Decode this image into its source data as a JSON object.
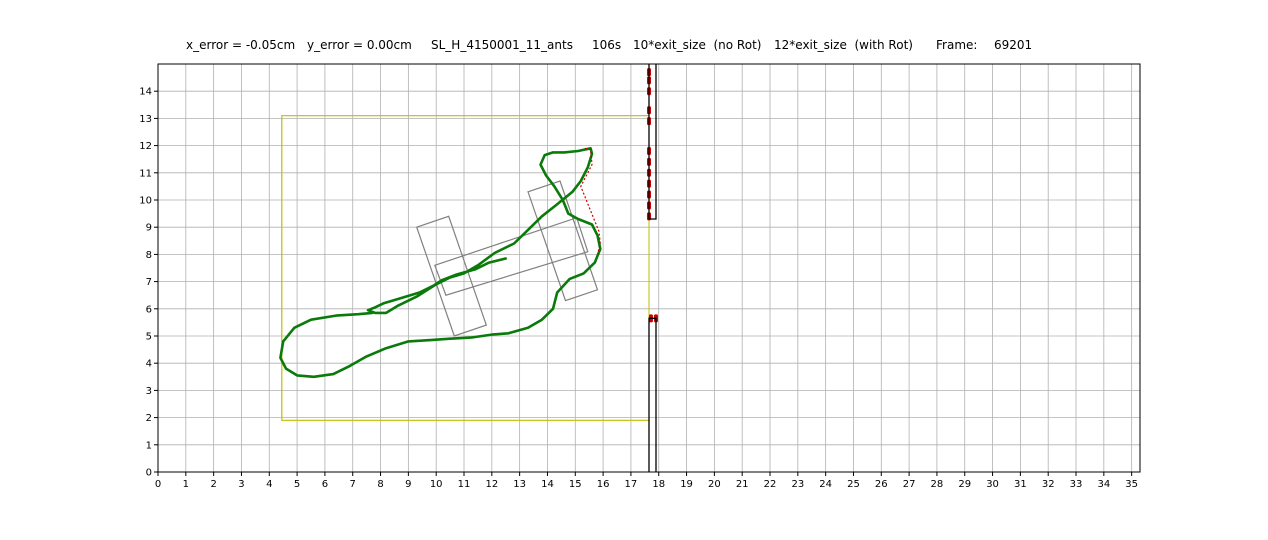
{
  "title": {
    "x_error": "x_error = -0.05cm",
    "y_error": "y_error = 0.00cm",
    "experiment": "SL_H_4150001_11_ants",
    "time": "106s",
    "exit_no_rot": "10*exit_size  (no Rot)",
    "exit_with_rot": "12*exit_size  (with Rot)",
    "frame_label": "Frame:",
    "frame_value": "69201"
  },
  "chart_data": {
    "type": "line",
    "title": "",
    "xlabel": "",
    "ylabel": "",
    "xlim": [
      0,
      35.3
    ],
    "ylim": [
      0,
      15
    ],
    "xticks": [
      0,
      1,
      2,
      3,
      4,
      5,
      6,
      7,
      8,
      9,
      10,
      11,
      12,
      13,
      14,
      15,
      16,
      17,
      18,
      19,
      20,
      21,
      22,
      23,
      24,
      25,
      26,
      27,
      28,
      29,
      30,
      31,
      32,
      33,
      34,
      35
    ],
    "yticks": [
      0,
      1,
      2,
      3,
      4,
      5,
      6,
      7,
      8,
      9,
      10,
      11,
      12,
      13,
      14
    ],
    "grid": true,
    "colors": {
      "trajectory": "#0a7a0a",
      "trajectory_rot": "#cc0000",
      "arena": "#bfbf00",
      "walls": "#000000",
      "shape": "#808080",
      "grid": "#b0b0b0"
    },
    "arena_rect": {
      "x0": 4.45,
      "y0": 1.9,
      "x1": 17.65,
      "y1": 13.1
    },
    "exit_line_x": 17.65,
    "walls": [
      {
        "points": [
          [
            17.65,
            15
          ],
          [
            17.65,
            9.3
          ],
          [
            17.9,
            9.3
          ],
          [
            17.9,
            15
          ]
        ]
      },
      {
        "points": [
          [
            17.65,
            0
          ],
          [
            17.65,
            5.65
          ],
          [
            17.9,
            5.65
          ],
          [
            17.9,
            0
          ]
        ]
      }
    ],
    "shape_polygons": [
      {
        "points": [
          [
            9.3,
            9.0
          ],
          [
            10.45,
            9.4
          ],
          [
            11.8,
            5.4
          ],
          [
            10.65,
            5.0
          ]
        ]
      },
      {
        "points": [
          [
            13.3,
            10.3
          ],
          [
            14.45,
            10.7
          ],
          [
            15.8,
            6.7
          ],
          [
            14.65,
            6.3
          ]
        ]
      },
      {
        "points": [
          [
            9.95,
            7.6
          ],
          [
            15.05,
            9.35
          ],
          [
            15.45,
            8.1
          ],
          [
            10.35,
            6.5
          ]
        ]
      }
    ],
    "trajectory": [
      [
        12.5,
        7.85
      ],
      [
        11.9,
        7.7
      ],
      [
        11.4,
        7.45
      ],
      [
        10.7,
        7.25
      ],
      [
        10.2,
        7.05
      ],
      [
        9.9,
        6.85
      ],
      [
        9.4,
        6.6
      ],
      [
        8.6,
        6.35
      ],
      [
        8.1,
        6.2
      ],
      [
        7.8,
        6.05
      ],
      [
        7.55,
        5.95
      ],
      [
        7.8,
        5.85
      ],
      [
        8.2,
        5.85
      ],
      [
        8.6,
        6.1
      ],
      [
        9.3,
        6.45
      ],
      [
        10.0,
        6.9
      ],
      [
        10.5,
        7.15
      ],
      [
        11.0,
        7.3
      ],
      [
        11.5,
        7.6
      ],
      [
        12.1,
        8.05
      ],
      [
        12.8,
        8.4
      ],
      [
        13.3,
        8.9
      ],
      [
        13.8,
        9.4
      ],
      [
        14.3,
        9.8
      ],
      [
        14.9,
        10.3
      ],
      [
        15.2,
        10.7
      ],
      [
        15.45,
        11.2
      ],
      [
        15.6,
        11.7
      ],
      [
        15.55,
        11.9
      ],
      [
        15.1,
        11.8
      ],
      [
        14.6,
        11.75
      ],
      [
        14.2,
        11.75
      ],
      [
        13.9,
        11.65
      ],
      [
        13.75,
        11.3
      ],
      [
        13.95,
        10.9
      ],
      [
        14.25,
        10.5
      ],
      [
        14.55,
        10.0
      ],
      [
        14.75,
        9.5
      ],
      [
        15.1,
        9.3
      ],
      [
        15.6,
        9.1
      ],
      [
        15.8,
        8.7
      ],
      [
        15.9,
        8.2
      ],
      [
        15.7,
        7.7
      ],
      [
        15.3,
        7.3
      ],
      [
        14.8,
        7.1
      ],
      [
        14.35,
        6.6
      ],
      [
        14.2,
        6.0
      ],
      [
        13.8,
        5.6
      ],
      [
        13.3,
        5.3
      ],
      [
        12.6,
        5.1
      ],
      [
        12.0,
        5.05
      ],
      [
        11.3,
        4.95
      ],
      [
        10.5,
        4.9
      ],
      [
        9.8,
        4.85
      ],
      [
        9.0,
        4.8
      ],
      [
        8.2,
        4.55
      ],
      [
        7.5,
        4.25
      ],
      [
        6.9,
        3.9
      ],
      [
        6.3,
        3.6
      ],
      [
        5.6,
        3.5
      ],
      [
        5.0,
        3.55
      ],
      [
        4.6,
        3.8
      ],
      [
        4.4,
        4.2
      ],
      [
        4.5,
        4.8
      ],
      [
        4.9,
        5.3
      ],
      [
        5.5,
        5.6
      ],
      [
        6.4,
        5.75
      ],
      [
        7.2,
        5.8
      ],
      [
        7.7,
        5.85
      ]
    ],
    "trajectory_rot": [
      [
        15.35,
        11.9
      ],
      [
        15.55,
        11.85
      ],
      [
        15.6,
        11.3
      ],
      [
        15.4,
        10.9
      ],
      [
        15.2,
        10.5
      ],
      [
        15.85,
        8.85
      ],
      [
        15.9,
        8.4
      ],
      [
        15.8,
        8.0
      ]
    ],
    "exit_marks": [
      [
        17.65,
        14.7
      ],
      [
        17.65,
        14.4
      ],
      [
        17.65,
        14.0
      ],
      [
        17.65,
        13.3
      ],
      [
        17.65,
        12.9
      ],
      [
        17.65,
        11.8
      ],
      [
        17.65,
        11.4
      ],
      [
        17.65,
        11.0
      ],
      [
        17.65,
        10.6
      ],
      [
        17.65,
        10.2
      ],
      [
        17.65,
        9.8
      ],
      [
        17.65,
        9.4
      ],
      [
        17.72,
        5.65
      ],
      [
        17.9,
        5.65
      ]
    ]
  }
}
